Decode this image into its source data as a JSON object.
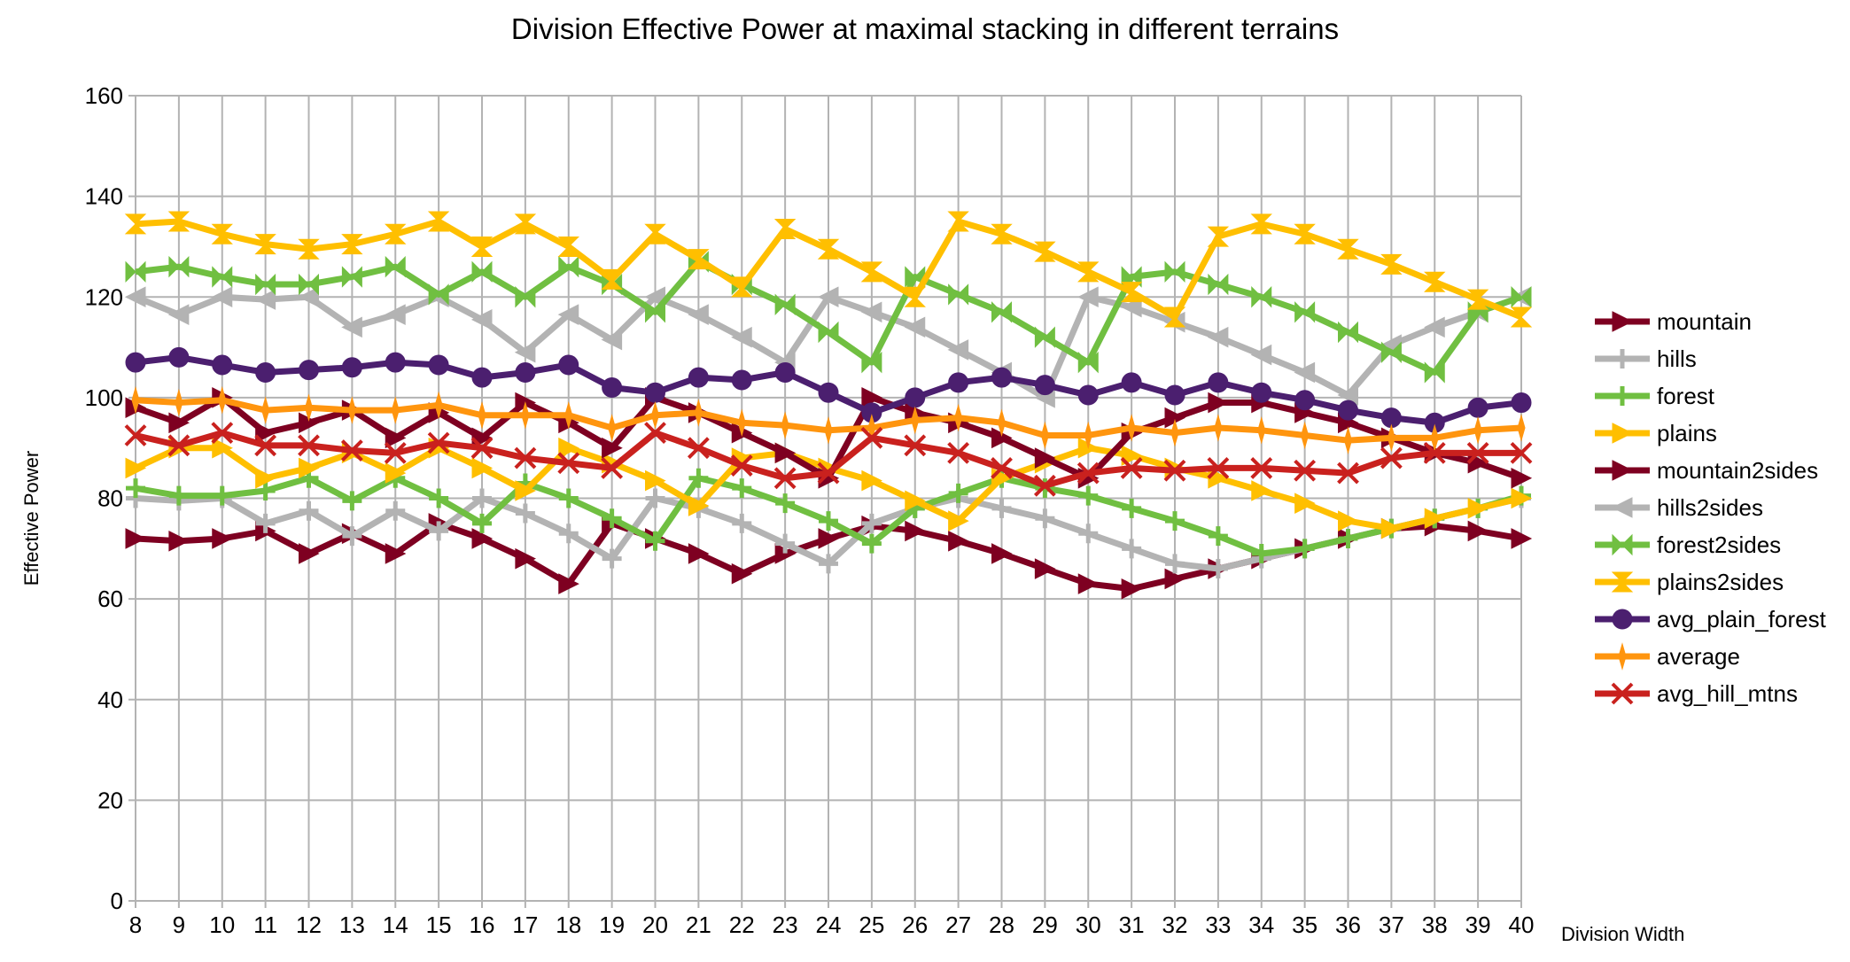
{
  "chart_data": {
    "type": "line",
    "title": "Division Effective Power at maximal stacking in different terrains",
    "xlabel": "Division Width",
    "ylabel": "Effective Power",
    "ylim": [
      0,
      160
    ],
    "yticks": [
      0,
      20,
      40,
      60,
      80,
      100,
      120,
      140,
      160
    ],
    "grid": true,
    "legend_position": "right",
    "x": [
      8,
      9,
      10,
      11,
      12,
      13,
      14,
      15,
      16,
      17,
      18,
      19,
      20,
      21,
      22,
      23,
      24,
      25,
      26,
      27,
      28,
      29,
      30,
      31,
      32,
      33,
      34,
      35,
      36,
      37,
      38,
      39,
      40
    ],
    "series": [
      {
        "name": "mountain",
        "color": "#7e0021",
        "marker": "triangle-right",
        "values": [
          72,
          71.5,
          72,
          73.5,
          69,
          73,
          69,
          75,
          72,
          68,
          63,
          75,
          72,
          69,
          65,
          69,
          72,
          74.5,
          73.5,
          71.5,
          69,
          66,
          63,
          62,
          64,
          66,
          68,
          70,
          72,
          74,
          74.5,
          73.5,
          72
        ]
      },
      {
        "name": "hills",
        "color": "#b3b3b3",
        "marker": "plus",
        "values": [
          80,
          79.5,
          80,
          75,
          77.5,
          72.5,
          77.5,
          73.5,
          80,
          77,
          73,
          68,
          80,
          78,
          75,
          71,
          67,
          75,
          78,
          80,
          78,
          76,
          73,
          70,
          67,
          66,
          68,
          70,
          72,
          74,
          76,
          78,
          80
        ]
      },
      {
        "name": "forest",
        "color": "#70bf41",
        "marker": "plus",
        "values": [
          82,
          80.5,
          80.5,
          81.5,
          84,
          79.5,
          84,
          80,
          75,
          83,
          80,
          76,
          71.5,
          84,
          82,
          79,
          75.5,
          71,
          78,
          81,
          84,
          82,
          80.5,
          78,
          75.5,
          72.5,
          69,
          70,
          72,
          74,
          76,
          78,
          80.5
        ]
      },
      {
        "name": "plains",
        "color": "#ffbf00",
        "marker": "triangle-right",
        "values": [
          86,
          90,
          90,
          84,
          86,
          89,
          85,
          90,
          86,
          81.5,
          90,
          87,
          83.5,
          78.5,
          88,
          89,
          86,
          83.5,
          79.5,
          75.5,
          84,
          87,
          90,
          88.5,
          86,
          84,
          81.5,
          79,
          75.5,
          74,
          76,
          78,
          80
        ]
      },
      {
        "name": "mountain2sides",
        "color": "#7e0021",
        "marker": "triangle-right",
        "values": [
          98,
          95,
          100,
          93,
          95,
          97.5,
          92,
          97,
          92,
          99,
          95,
          90,
          100,
          97,
          93,
          89,
          84,
          100,
          97,
          95,
          92,
          88,
          84,
          93,
          96,
          99,
          99,
          97,
          95,
          92,
          89,
          87,
          84
        ]
      },
      {
        "name": "hills2sides",
        "color": "#b3b3b3",
        "marker": "triangle-left",
        "values": [
          120,
          116.5,
          120,
          119.5,
          120,
          114,
          116.5,
          120,
          115.5,
          109,
          116.5,
          111.5,
          120,
          116.5,
          112,
          107,
          120,
          117,
          114,
          109.5,
          105,
          100,
          120,
          118,
          115,
          112,
          108.5,
          105,
          100.5,
          110.5,
          114,
          117,
          120
        ]
      },
      {
        "name": "forest2sides",
        "color": "#70bf41",
        "marker": "bowtie",
        "values": [
          125,
          126,
          124,
          122.5,
          122.5,
          124,
          126,
          120.5,
          125,
          120,
          126,
          122.5,
          117,
          127,
          122.5,
          118.5,
          113,
          107,
          124,
          120.5,
          117,
          112,
          107,
          124,
          125,
          122.5,
          120,
          117,
          113,
          109,
          105,
          117,
          120
        ]
      },
      {
        "name": "plains2sides",
        "color": "#ffbf00",
        "marker": "hourglass",
        "values": [
          134.5,
          135,
          132.5,
          130.5,
          129.5,
          130.5,
          132.5,
          135,
          130,
          134.5,
          130,
          123.5,
          132.5,
          127.5,
          122,
          133.5,
          129.5,
          125,
          120,
          135,
          132.5,
          129,
          125,
          121,
          116,
          132,
          134.5,
          132.5,
          129.5,
          126.5,
          123,
          119.5,
          116
        ]
      },
      {
        "name": "avg_plain_forest",
        "color": "#4b1f6f",
        "marker": "circle",
        "values": [
          107,
          108,
          106.5,
          105,
          105.5,
          106,
          107,
          106.5,
          104,
          105,
          106.5,
          102,
          101,
          104,
          103.5,
          105,
          101,
          97,
          100,
          103,
          104,
          102.5,
          100.5,
          103,
          100.5,
          103,
          101,
          99.5,
          97.5,
          96,
          95,
          98,
          99
        ]
      },
      {
        "name": "average",
        "color": "#ff950e",
        "marker": "diamond",
        "values": [
          99.5,
          99,
          99.5,
          97.5,
          98,
          97.5,
          97.5,
          98.5,
          96.5,
          96.5,
          96.5,
          94,
          96.5,
          97,
          95,
          94.5,
          93.5,
          94,
          95.5,
          96,
          95,
          92.5,
          92.5,
          94,
          93,
          94,
          93.5,
          92.5,
          91.5,
          92,
          92,
          93.5,
          94
        ]
      },
      {
        "name": "avg_hill_mtns",
        "color": "#c9211e",
        "marker": "x",
        "values": [
          92.5,
          90.5,
          93,
          90.5,
          90.5,
          89.5,
          89,
          91,
          90,
          88,
          87,
          86,
          93,
          90,
          86.5,
          84,
          85,
          92,
          90.5,
          89,
          86,
          82.5,
          85,
          86,
          85.5,
          86,
          86,
          85.5,
          85,
          88,
          89,
          89,
          89
        ]
      }
    ]
  }
}
